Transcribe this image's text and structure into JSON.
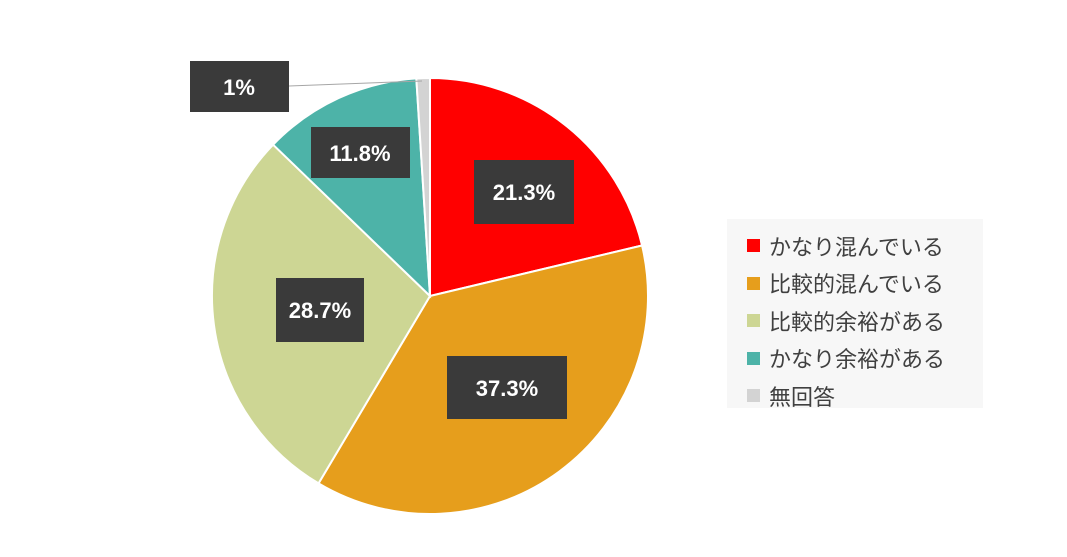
{
  "chart_data": {
    "type": "pie",
    "categories": [
      "かなり混んでいる",
      "比較的混んでいる",
      "比較的余裕がある",
      "かなり余裕がある",
      "無回答"
    ],
    "values": [
      21.3,
      37.3,
      28.7,
      11.8,
      1
    ],
    "data_labels": [
      "21.3%",
      "37.3%",
      "28.7%",
      "11.8%",
      "1%"
    ],
    "colors": [
      "#ff0000",
      "#e69e1c",
      "#cdd694",
      "#4db3a8",
      "#d3d3d3"
    ],
    "legend_position": "right",
    "start_angle": "top, clockwise"
  }
}
